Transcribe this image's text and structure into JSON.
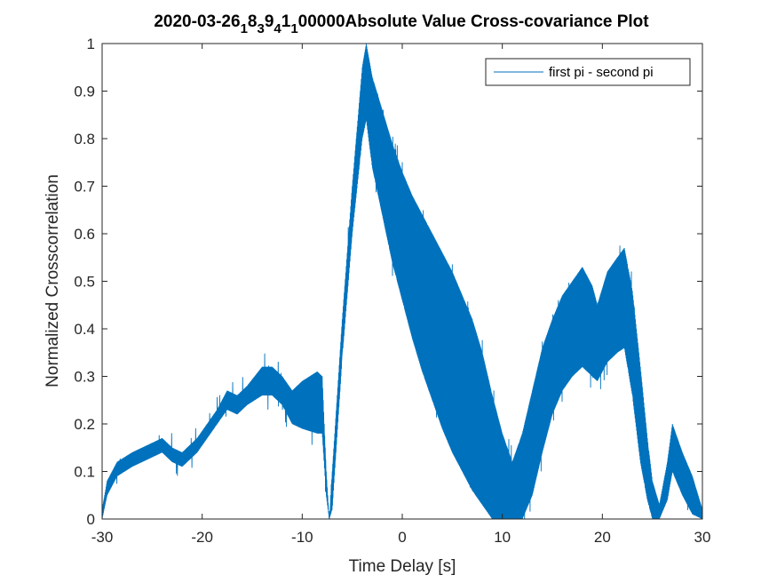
{
  "chart_data": {
    "type": "line",
    "title_parts": [
      "2020-03-26",
      "1",
      "8",
      "3",
      "9",
      "4",
      "1",
      "1",
      "00000Absolute Value Cross-covariance Plot"
    ],
    "xlabel": "Time Delay [s]",
    "ylabel": "Normalized Crosscorrelation",
    "xlim": [
      -30,
      30
    ],
    "ylim": [
      0,
      1
    ],
    "xticks": [
      -30,
      -20,
      -10,
      0,
      10,
      20,
      30
    ],
    "xtick_labels": [
      "-30",
      "-20",
      "-10",
      "0",
      "10",
      "20",
      "30"
    ],
    "yticks": [
      0,
      0.1,
      0.2,
      0.3,
      0.4,
      0.5,
      0.6,
      0.7,
      0.8,
      0.9,
      1
    ],
    "ytick_labels": [
      "0",
      "0.1",
      "0.2",
      "0.3",
      "0.4",
      "0.5",
      "0.6",
      "0.7",
      "0.8",
      "0.9",
      "1"
    ],
    "grid": false,
    "legend_position": "top-right",
    "series": [
      {
        "name": "first pi - second pi",
        "color": "#0072BD",
        "upper": [
          [
            -30,
            0.02
          ],
          [
            -29.5,
            0.08
          ],
          [
            -28.5,
            0.12
          ],
          [
            -27,
            0.14
          ],
          [
            -25,
            0.16
          ],
          [
            -24,
            0.17
          ],
          [
            -23,
            0.15
          ],
          [
            -22,
            0.14
          ],
          [
            -20.5,
            0.17
          ],
          [
            -19.5,
            0.2
          ],
          [
            -18.5,
            0.23
          ],
          [
            -17.5,
            0.27
          ],
          [
            -16.5,
            0.26
          ],
          [
            -15.5,
            0.28
          ],
          [
            -14,
            0.32
          ],
          [
            -13,
            0.32
          ],
          [
            -12,
            0.3
          ],
          [
            -11,
            0.27
          ],
          [
            -10,
            0.29
          ],
          [
            -8.5,
            0.31
          ],
          [
            -8,
            0.3
          ],
          [
            -7.6,
            0.1
          ],
          [
            -7.3,
            0.0
          ],
          [
            -7,
            0.1
          ],
          [
            -6,
            0.42
          ],
          [
            -5,
            0.7
          ],
          [
            -4,
            0.95
          ],
          [
            -3.6,
            1.0
          ],
          [
            -3,
            0.93
          ],
          [
            -2,
            0.86
          ],
          [
            -1,
            0.79
          ],
          [
            0,
            0.73
          ],
          [
            1,
            0.68
          ],
          [
            2,
            0.64
          ],
          [
            3,
            0.6
          ],
          [
            4,
            0.56
          ],
          [
            5,
            0.52
          ],
          [
            6,
            0.47
          ],
          [
            7,
            0.42
          ],
          [
            8,
            0.35
          ],
          [
            9,
            0.26
          ],
          [
            10,
            0.18
          ],
          [
            11,
            0.12
          ],
          [
            12,
            0.18
          ],
          [
            13,
            0.27
          ],
          [
            14,
            0.36
          ],
          [
            15,
            0.42
          ],
          [
            16,
            0.47
          ],
          [
            17,
            0.5
          ],
          [
            18,
            0.53
          ],
          [
            19,
            0.49
          ],
          [
            19.5,
            0.45
          ],
          [
            20.5,
            0.52
          ],
          [
            21.5,
            0.55
          ],
          [
            22.2,
            0.57
          ],
          [
            23,
            0.48
          ],
          [
            23.8,
            0.32
          ],
          [
            24.5,
            0.17
          ],
          [
            25,
            0.08
          ],
          [
            25.7,
            0.03
          ],
          [
            26.5,
            0.12
          ],
          [
            27,
            0.2
          ],
          [
            28,
            0.14
          ],
          [
            29,
            0.09
          ],
          [
            30,
            0.02
          ]
        ],
        "lower": [
          [
            -30,
            0.0
          ],
          [
            -29.5,
            0.05
          ],
          [
            -28.5,
            0.09
          ],
          [
            -27,
            0.11
          ],
          [
            -25,
            0.13
          ],
          [
            -24,
            0.14
          ],
          [
            -23,
            0.12
          ],
          [
            -22,
            0.11
          ],
          [
            -20.5,
            0.14
          ],
          [
            -19.5,
            0.17
          ],
          [
            -18.5,
            0.2
          ],
          [
            -17.5,
            0.23
          ],
          [
            -16.5,
            0.22
          ],
          [
            -15.5,
            0.24
          ],
          [
            -14,
            0.26
          ],
          [
            -13,
            0.26
          ],
          [
            -12,
            0.24
          ],
          [
            -11,
            0.2
          ],
          [
            -10,
            0.19
          ],
          [
            -8.5,
            0.18
          ],
          [
            -8,
            0.18
          ],
          [
            -7.6,
            0.05
          ],
          [
            -7.3,
            0.0
          ],
          [
            -7,
            0.02
          ],
          [
            -6,
            0.34
          ],
          [
            -5,
            0.6
          ],
          [
            -4,
            0.8
          ],
          [
            -3.6,
            0.84
          ],
          [
            -3,
            0.74
          ],
          [
            -2,
            0.64
          ],
          [
            -1,
            0.54
          ],
          [
            0,
            0.46
          ],
          [
            1,
            0.38
          ],
          [
            2,
            0.31
          ],
          [
            3,
            0.25
          ],
          [
            4,
            0.19
          ],
          [
            5,
            0.14
          ],
          [
            6,
            0.1
          ],
          [
            7,
            0.06
          ],
          [
            8,
            0.03
          ],
          [
            9,
            0.0
          ],
          [
            10,
            0.0
          ],
          [
            11,
            0.0
          ],
          [
            12,
            0.0
          ],
          [
            13,
            0.05
          ],
          [
            14,
            0.14
          ],
          [
            15,
            0.22
          ],
          [
            16,
            0.27
          ],
          [
            17,
            0.3
          ],
          [
            18,
            0.32
          ],
          [
            19,
            0.3
          ],
          [
            19.5,
            0.29
          ],
          [
            20.5,
            0.33
          ],
          [
            21.5,
            0.35
          ],
          [
            22.2,
            0.36
          ],
          [
            23,
            0.26
          ],
          [
            23.8,
            0.12
          ],
          [
            24.5,
            0.04
          ],
          [
            25,
            0.0
          ],
          [
            25.7,
            0.0
          ],
          [
            26.5,
            0.04
          ],
          [
            27,
            0.1
          ],
          [
            28,
            0.05
          ],
          [
            29,
            0.01
          ],
          [
            30,
            0.0
          ]
        ]
      }
    ]
  }
}
